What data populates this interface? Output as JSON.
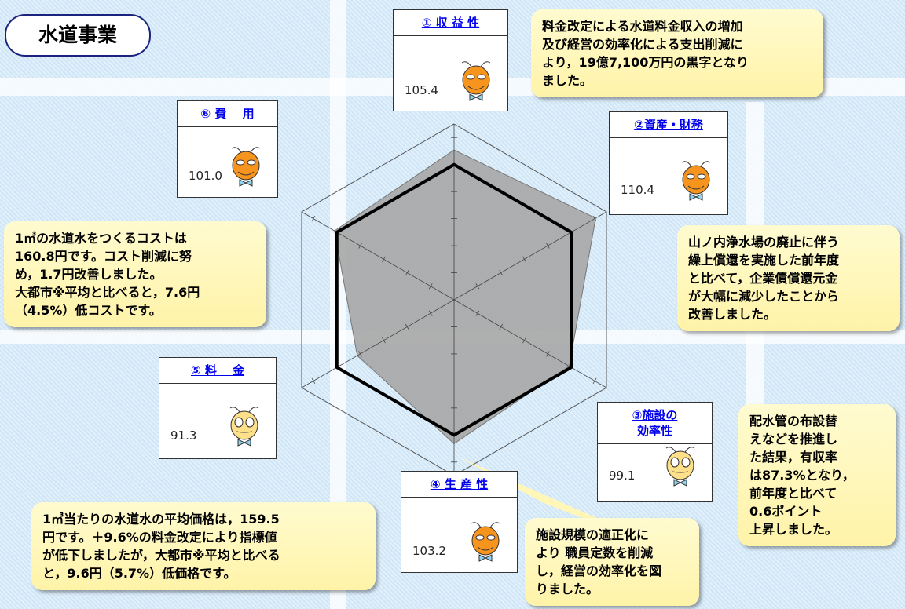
{
  "chart_data": {
    "type": "radar",
    "title": "水道事業",
    "categories": [
      "① 収 益 性",
      "②資産・財務",
      "③施設の\n効率性",
      "④ 生 産 性",
      "⑤ 料　 金",
      "⑥ 費　 用"
    ],
    "values": [
      105.4,
      110.4,
      99.1,
      103.2,
      91.3,
      101.0
    ],
    "value_labels": [
      "105.4",
      "110.4",
      "99.1",
      "103.2",
      "91.3",
      "101.0"
    ],
    "baseline": 100,
    "ylim": [
      50,
      115
    ],
    "yticks": [
      60,
      70,
      80,
      90,
      100,
      110
    ],
    "color": "#a6a6a6",
    "annotations": [
      "料金改定による水道料金収入の増加\n及び経営の効率化による支出削減に\nより，19億7,100万円の黒字となり\nました。",
      "山ノ内浄水場の廃止に伴う\n繰上償還を実施した前年度\nと比べて，企業債償還元金\nが大幅に減少したことから\n改善しました。",
      "配水管の布設替\nえなどを推進し\nた結果，有収率\nは87.3%となり，\n前年度と比べて\n0.6ポイント\n上昇しました。",
      "施設規模の適正化に\nより 職員定数を削減\nし，経営の効率化を図\nりました。",
      "1㎥当たりの水道水の平均価格は，159.5\n円です。＋9.6%の料金改定により指標値\nが低下しましたが，大都市※平均と比べる\nと，9.6円（5.7%）低価格です。",
      "1㎥の水道水をつくるコストは\n160.8円です。コスト削減に努\nめ，1.7円改善しました。\n大都市※平均と比べると，7.6円\n（4.5%）低コストです。"
    ]
  }
}
